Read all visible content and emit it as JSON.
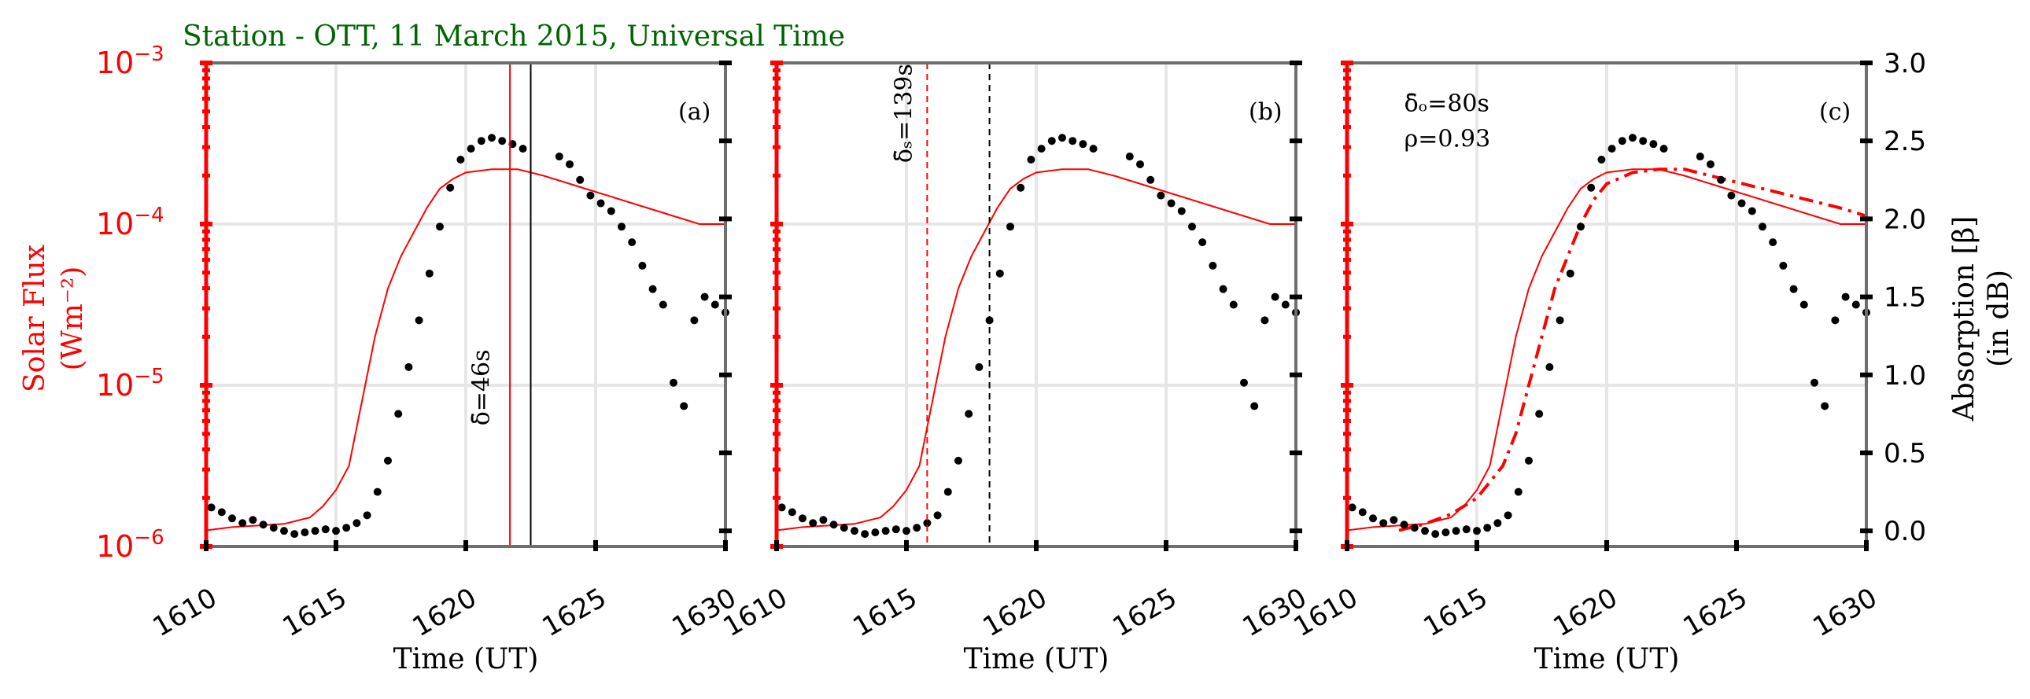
{
  "figure": {
    "title": "Station - OTT, 11 March 2015, Universal Time",
    "left_axis_label_line1": "Solar Flux",
    "left_axis_label_line2": "(Wm⁻²)",
    "right_axis_label_line1": "Absorption [β]",
    "right_axis_label_line2": "(in dB)",
    "xlabel": "Time (UT)"
  },
  "colors": {
    "title": "#006400",
    "flux": "#ff0000",
    "absorption": "#000000",
    "grid": "#e6e6e6",
    "spine": "#6e6e6e"
  },
  "chart_data": [
    {
      "type": "line",
      "panel_label": "(a)",
      "xlim": [
        1610,
        1630
      ],
      "x_ticks": [
        "1610",
        "1615",
        "1620",
        "1625",
        "1630"
      ],
      "x_tick_values": [
        1610,
        1615,
        1620,
        1625,
        1630
      ],
      "ylim_left_log10": [
        -6,
        -3
      ],
      "y_left_ticks": [
        {
          "base": "10",
          "exp": "−6",
          "value": -6
        },
        {
          "base": "10",
          "exp": "−5",
          "value": -5
        },
        {
          "base": "10",
          "exp": "−4",
          "value": -4
        },
        {
          "base": "10",
          "exp": "−3",
          "value": -3
        }
      ],
      "ylim_right": [
        -0.1,
        3.0
      ],
      "y_right_ticks": [
        "0.0",
        "0.5",
        "1.0",
        "1.5",
        "2.0",
        "2.5",
        "3.0"
      ],
      "y_right_tick_values": [
        0.0,
        0.5,
        1.0,
        1.5,
        2.0,
        2.5,
        3.0
      ],
      "series": [
        {
          "kind": "flux",
          "style": "solid",
          "x": [
            1610,
            1611,
            1612,
            1613,
            1614,
            1614.5,
            1615,
            1615.5,
            1616,
            1616.5,
            1617,
            1617.5,
            1618,
            1618.5,
            1619,
            1619.5,
            1620,
            1621,
            1622,
            1623,
            1624,
            1625,
            1626,
            1627,
            1628,
            1629,
            1630
          ],
          "log10_y": [
            -5.9,
            -5.88,
            -5.87,
            -5.86,
            -5.82,
            -5.75,
            -5.65,
            -5.5,
            -5.1,
            -4.7,
            -4.4,
            -4.2,
            -4.05,
            -3.9,
            -3.78,
            -3.72,
            -3.68,
            -3.66,
            -3.66,
            -3.7,
            -3.75,
            -3.8,
            -3.85,
            -3.9,
            -3.95,
            -4.0,
            -4.0
          ]
        }
      ],
      "absorption_points": {
        "x": [
          1610.2,
          1610.6,
          1611.0,
          1611.4,
          1611.8,
          1612.2,
          1612.6,
          1613.0,
          1613.4,
          1613.8,
          1614.2,
          1614.6,
          1615.0,
          1615.4,
          1615.8,
          1616.2,
          1616.6,
          1617.0,
          1617.4,
          1617.8,
          1618.2,
          1618.6,
          1619.0,
          1619.4,
          1619.8,
          1620.2,
          1620.6,
          1621.0,
          1621.4,
          1621.8,
          1622.2,
          1623.6,
          1624.0,
          1624.4,
          1624.8,
          1625.2,
          1625.6,
          1626.0,
          1626.4,
          1626.8,
          1627.2,
          1627.6,
          1628.0,
          1628.4,
          1628.8,
          1629.2,
          1629.6,
          1630.0
        ],
        "y": [
          0.15,
          0.12,
          0.08,
          0.05,
          0.07,
          0.04,
          0.02,
          0.0,
          -0.02,
          -0.01,
          0.0,
          0.01,
          0.0,
          0.02,
          0.05,
          0.1,
          0.25,
          0.45,
          0.75,
          1.05,
          1.35,
          1.65,
          1.95,
          2.2,
          2.38,
          2.45,
          2.5,
          2.52,
          2.5,
          2.48,
          2.45,
          2.4,
          2.35,
          2.25,
          2.15,
          2.1,
          2.05,
          1.95,
          1.85,
          1.7,
          1.55,
          1.45,
          0.95,
          0.8,
          1.35,
          1.5,
          1.45,
          1.4
        ]
      },
      "vlines": [
        {
          "x": 1621.7,
          "color": "#ff0000",
          "style": "solid"
        },
        {
          "x": 1622.5,
          "color": "#000000",
          "style": "solid"
        }
      ],
      "annotations": [
        {
          "text": "δ̄=46s",
          "x": 1620.9,
          "rotation": -90,
          "anchor_value": -5.25
        }
      ]
    },
    {
      "type": "line",
      "panel_label": "(b)",
      "xlim": [
        1610,
        1630
      ],
      "x_ticks": [
        "1610",
        "1615",
        "1620",
        "1625",
        "1630"
      ],
      "x_tick_values": [
        1610,
        1615,
        1620,
        1625,
        1630
      ],
      "ylim_left_log10": [
        -6,
        -3
      ],
      "ylim_right": [
        -0.1,
        3.0
      ],
      "series": [
        {
          "kind": "flux",
          "style": "solid",
          "x": [
            1610,
            1611,
            1612,
            1613,
            1614,
            1614.5,
            1615,
            1615.5,
            1616,
            1616.5,
            1617,
            1617.5,
            1618,
            1618.5,
            1619,
            1619.5,
            1620,
            1621,
            1622,
            1623,
            1624,
            1625,
            1626,
            1627,
            1628,
            1629,
            1630
          ],
          "log10_y": [
            -5.9,
            -5.88,
            -5.87,
            -5.86,
            -5.82,
            -5.75,
            -5.65,
            -5.5,
            -5.1,
            -4.7,
            -4.4,
            -4.2,
            -4.05,
            -3.9,
            -3.78,
            -3.72,
            -3.68,
            -3.66,
            -3.66,
            -3.7,
            -3.75,
            -3.8,
            -3.85,
            -3.9,
            -3.95,
            -4.0,
            -4.0
          ]
        }
      ],
      "absorption_points": {
        "x": [
          1610.2,
          1610.6,
          1611.0,
          1611.4,
          1611.8,
          1612.2,
          1612.6,
          1613.0,
          1613.4,
          1613.8,
          1614.2,
          1614.6,
          1615.0,
          1615.4,
          1615.8,
          1616.2,
          1616.6,
          1617.0,
          1617.4,
          1617.8,
          1618.2,
          1618.6,
          1619.0,
          1619.4,
          1619.8,
          1620.2,
          1620.6,
          1621.0,
          1621.4,
          1621.8,
          1622.2,
          1623.6,
          1624.0,
          1624.4,
          1624.8,
          1625.2,
          1625.6,
          1626.0,
          1626.4,
          1626.8,
          1627.2,
          1627.6,
          1628.0,
          1628.4,
          1628.8,
          1629.2,
          1629.6,
          1630.0
        ],
        "y": [
          0.15,
          0.12,
          0.08,
          0.05,
          0.07,
          0.04,
          0.02,
          0.0,
          -0.02,
          -0.01,
          0.0,
          0.01,
          0.0,
          0.02,
          0.05,
          0.1,
          0.25,
          0.45,
          0.75,
          1.05,
          1.35,
          1.65,
          1.95,
          2.2,
          2.38,
          2.45,
          2.5,
          2.52,
          2.5,
          2.48,
          2.45,
          2.4,
          2.35,
          2.25,
          2.15,
          2.1,
          2.05,
          1.95,
          1.85,
          1.7,
          1.55,
          1.45,
          0.95,
          0.8,
          1.35,
          1.5,
          1.45,
          1.4
        ]
      },
      "vlines": [
        {
          "x": 1615.8,
          "color": "#ff0000",
          "style": "dashed"
        },
        {
          "x": 1618.2,
          "color": "#000000",
          "style": "dashed"
        }
      ],
      "annotations": [
        {
          "text": "δ̄ₛ=139s",
          "x": 1615.2,
          "rotation": -90,
          "anchor_value": -3.62
        }
      ]
    },
    {
      "type": "line",
      "panel_label": "(c)",
      "xlim": [
        1610,
        1630
      ],
      "x_ticks": [
        "1610",
        "1615",
        "1620",
        "1625",
        "1630"
      ],
      "x_tick_values": [
        1610,
        1615,
        1620,
        1625,
        1630
      ],
      "ylim_left_log10": [
        -6,
        -3
      ],
      "ylim_right": [
        -0.1,
        3.0
      ],
      "series": [
        {
          "kind": "flux",
          "style": "solid",
          "x": [
            1610,
            1611,
            1612,
            1613,
            1614,
            1614.5,
            1615,
            1615.5,
            1616,
            1616.5,
            1617,
            1617.5,
            1618,
            1618.5,
            1619,
            1619.5,
            1620,
            1621,
            1622,
            1623,
            1624,
            1625,
            1626,
            1627,
            1628,
            1629,
            1630
          ],
          "log10_y": [
            -5.9,
            -5.88,
            -5.87,
            -5.86,
            -5.82,
            -5.75,
            -5.65,
            -5.5,
            -5.1,
            -4.7,
            -4.4,
            -4.2,
            -4.05,
            -3.9,
            -3.78,
            -3.72,
            -3.68,
            -3.66,
            -3.66,
            -3.7,
            -3.75,
            -3.8,
            -3.85,
            -3.9,
            -3.95,
            -4.0,
            -4.0
          ]
        },
        {
          "kind": "flux",
          "style": "dashdot",
          "x": [
            1612,
            1613,
            1614,
            1615,
            1615.5,
            1616,
            1616.5,
            1617,
            1617.5,
            1618,
            1618.5,
            1619,
            1619.5,
            1620,
            1621,
            1622,
            1623,
            1624,
            1625,
            1626,
            1627,
            1628,
            1629,
            1630
          ],
          "log10_y": [
            -5.9,
            -5.86,
            -5.8,
            -5.7,
            -5.6,
            -5.5,
            -5.3,
            -5.0,
            -4.7,
            -4.4,
            -4.2,
            -4.0,
            -3.85,
            -3.75,
            -3.68,
            -3.66,
            -3.66,
            -3.7,
            -3.74,
            -3.78,
            -3.82,
            -3.86,
            -3.9,
            -3.95
          ]
        }
      ],
      "absorption_points": {
        "x": [
          1610.2,
          1610.6,
          1611.0,
          1611.4,
          1611.8,
          1612.2,
          1612.6,
          1613.0,
          1613.4,
          1613.8,
          1614.2,
          1614.6,
          1615.0,
          1615.4,
          1615.8,
          1616.2,
          1616.6,
          1617.0,
          1617.4,
          1617.8,
          1618.2,
          1618.6,
          1619.0,
          1619.4,
          1619.8,
          1620.2,
          1620.6,
          1621.0,
          1621.4,
          1621.8,
          1622.2,
          1623.6,
          1624.0,
          1624.4,
          1624.8,
          1625.2,
          1625.6,
          1626.0,
          1626.4,
          1626.8,
          1627.2,
          1627.6,
          1628.0,
          1628.4,
          1628.8,
          1629.2,
          1629.6,
          1630.0
        ],
        "y": [
          0.15,
          0.12,
          0.08,
          0.05,
          0.07,
          0.04,
          0.02,
          0.0,
          -0.02,
          -0.01,
          0.0,
          0.01,
          0.0,
          0.02,
          0.05,
          0.1,
          0.25,
          0.45,
          0.75,
          1.05,
          1.35,
          1.65,
          1.95,
          2.2,
          2.38,
          2.45,
          2.5,
          2.52,
          2.5,
          2.48,
          2.45,
          2.4,
          2.35,
          2.25,
          2.15,
          2.1,
          2.05,
          1.95,
          1.85,
          1.7,
          1.55,
          1.45,
          0.95,
          0.8,
          1.35,
          1.5,
          1.45,
          1.4
        ]
      },
      "vlines": [],
      "annotations": [
        {
          "text": "δ̄ₒ=80s",
          "x": 1612.2,
          "rotation": 0,
          "anchor_value": -3.3
        },
        {
          "text": "ρ=0.93",
          "x": 1612.2,
          "rotation": 0,
          "anchor_value": -3.52
        }
      ]
    }
  ]
}
